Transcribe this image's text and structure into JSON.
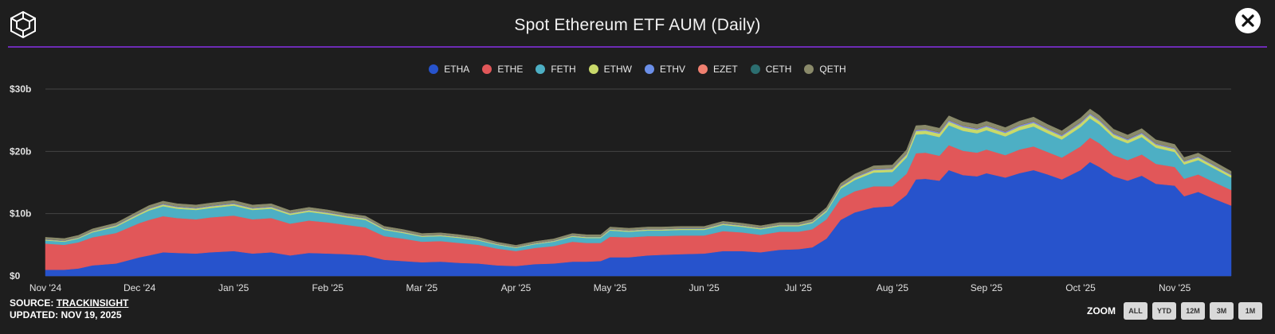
{
  "header": {
    "title": "Spot Ethereum ETF AUM (Daily)"
  },
  "colors": {
    "background": "#1e1e1e",
    "divider": "#6d2bb5",
    "grid": "#444444",
    "axis_text": "#e0e0e0"
  },
  "footer": {
    "source_label": "SOURCE:",
    "source_link": "TRACKINSIGHT",
    "updated": "UPDATED: NOV 19, 2025"
  },
  "zoom": {
    "label": "ZOOM",
    "buttons": [
      "ALL",
      "YTD",
      "12M",
      "3M",
      "1M"
    ]
  },
  "chart_data": {
    "type": "area",
    "stacked": true,
    "title": "Spot Ethereum ETF AUM (Daily)",
    "xlabel": "",
    "ylabel": "",
    "unit": "billion USD",
    "ylim": [
      0,
      30
    ],
    "yticks": [
      0,
      10,
      20,
      30
    ],
    "ytick_labels": [
      "$0",
      "$10b",
      "$20b",
      "$30b"
    ],
    "xrange": [
      "2024-11-01",
      "2025-11-19"
    ],
    "xticks": [
      "Nov '24",
      "Dec '24",
      "Jan '25",
      "Feb '25",
      "Mar '25",
      "Apr '25",
      "May '25",
      "Jun '25",
      "Jul '25",
      "Aug '25",
      "Sep '25",
      "Oct '25",
      "Nov '25"
    ],
    "xtick_months": [
      0,
      1,
      2,
      3,
      4,
      5,
      6,
      7,
      8,
      9,
      10,
      11,
      12
    ],
    "legend_position": "top-center",
    "x": [
      0,
      0.2,
      0.35,
      0.5,
      0.75,
      1.0,
      1.1,
      1.25,
      1.4,
      1.6,
      1.75,
      2.0,
      2.2,
      2.4,
      2.6,
      2.8,
      3.0,
      3.2,
      3.4,
      3.6,
      3.8,
      4.0,
      4.2,
      4.4,
      4.6,
      4.8,
      5.0,
      5.2,
      5.4,
      5.6,
      5.75,
      5.9,
      6.0,
      6.2,
      6.4,
      6.55,
      6.75,
      7.0,
      7.2,
      7.4,
      7.6,
      7.8,
      8.0,
      8.15,
      8.3,
      8.45,
      8.6,
      8.8,
      9.0,
      9.15,
      9.25,
      9.35,
      9.5,
      9.6,
      9.75,
      9.9,
      10.0,
      10.2,
      10.35,
      10.5,
      10.65,
      10.8,
      11.0,
      11.1,
      11.2,
      11.35,
      11.5,
      11.65,
      11.8,
      12.0,
      12.1,
      12.25,
      12.4,
      12.6
    ],
    "series": [
      {
        "name": "ETHA",
        "color": "#2753cc",
        "values": [
          1.0,
          1.0,
          1.2,
          1.7,
          2.0,
          3.0,
          3.3,
          3.8,
          3.7,
          3.6,
          3.8,
          4.0,
          3.6,
          3.8,
          3.3,
          3.7,
          3.6,
          3.5,
          3.3,
          2.6,
          2.4,
          2.2,
          2.3,
          2.1,
          2.0,
          1.7,
          1.6,
          1.9,
          2.0,
          2.3,
          2.3,
          2.4,
          3.0,
          3.0,
          3.3,
          3.4,
          3.5,
          3.6,
          4.0,
          4.0,
          3.8,
          4.2,
          4.3,
          4.6,
          6.0,
          9.0,
          10.2,
          11.0,
          11.2,
          13.0,
          15.5,
          15.6,
          15.3,
          17.0,
          16.2,
          16.0,
          16.5,
          15.8,
          16.5,
          17.0,
          16.3,
          15.5,
          17.0,
          18.3,
          17.5,
          16.0,
          15.3,
          16.1,
          14.8,
          14.5,
          12.8,
          13.5,
          12.5,
          11.3
        ]
      },
      {
        "name": "ETHE",
        "color": "#e15759",
        "values": [
          4.2,
          4.0,
          4.2,
          4.5,
          4.9,
          5.5,
          5.7,
          5.8,
          5.6,
          5.5,
          5.6,
          5.7,
          5.5,
          5.5,
          5.1,
          5.2,
          5.0,
          4.7,
          4.5,
          3.8,
          3.6,
          3.3,
          3.3,
          3.2,
          3.0,
          2.7,
          2.4,
          2.6,
          2.8,
          3.2,
          3.0,
          2.9,
          3.3,
          3.2,
          3.1,
          3.0,
          3.0,
          2.9,
          3.2,
          3.0,
          2.8,
          2.9,
          2.8,
          2.9,
          3.1,
          3.4,
          3.4,
          3.4,
          3.2,
          3.4,
          4.2,
          4.2,
          4.0,
          4.0,
          3.9,
          3.8,
          3.8,
          3.6,
          3.8,
          3.8,
          3.6,
          3.5,
          3.8,
          3.9,
          3.8,
          3.4,
          3.3,
          3.4,
          3.2,
          3.0,
          2.8,
          2.8,
          2.7,
          2.5
        ]
      },
      {
        "name": "FETH",
        "color": "#4dafc4",
        "values": [
          0.5,
          0.5,
          0.6,
          0.8,
          1.0,
          1.3,
          1.5,
          1.6,
          1.5,
          1.5,
          1.5,
          1.6,
          1.5,
          1.5,
          1.4,
          1.4,
          1.3,
          1.2,
          1.2,
          1.0,
          0.9,
          0.8,
          0.8,
          0.8,
          0.7,
          0.6,
          0.5,
          0.6,
          0.7,
          0.8,
          0.8,
          0.8,
          1.0,
          0.9,
          0.9,
          0.9,
          0.9,
          0.9,
          1.0,
          0.9,
          0.9,
          0.9,
          0.9,
          1.0,
          1.2,
          1.6,
          1.8,
          2.2,
          2.3,
          2.6,
          3.0,
          3.0,
          3.0,
          3.2,
          3.2,
          3.1,
          3.1,
          3.0,
          3.1,
          3.2,
          3.0,
          2.9,
          3.1,
          3.1,
          3.0,
          2.8,
          2.7,
          2.8,
          2.6,
          2.4,
          2.3,
          2.3,
          2.2,
          2.0
        ]
      },
      {
        "name": "ETHW",
        "color": "#c9d96a",
        "values": [
          0.12,
          0.12,
          0.13,
          0.16,
          0.18,
          0.22,
          0.25,
          0.26,
          0.25,
          0.24,
          0.25,
          0.26,
          0.24,
          0.24,
          0.23,
          0.23,
          0.22,
          0.21,
          0.2,
          0.17,
          0.16,
          0.14,
          0.14,
          0.14,
          0.13,
          0.11,
          0.1,
          0.11,
          0.12,
          0.14,
          0.14,
          0.14,
          0.16,
          0.16,
          0.16,
          0.16,
          0.16,
          0.16,
          0.17,
          0.17,
          0.16,
          0.17,
          0.17,
          0.18,
          0.22,
          0.3,
          0.33,
          0.38,
          0.4,
          0.45,
          0.55,
          0.55,
          0.55,
          0.58,
          0.57,
          0.56,
          0.56,
          0.55,
          0.57,
          0.58,
          0.55,
          0.53,
          0.56,
          0.57,
          0.55,
          0.51,
          0.49,
          0.51,
          0.48,
          0.45,
          0.42,
          0.43,
          0.41,
          0.38
        ]
      },
      {
        "name": "ETHV",
        "color": "#6b8fe8",
        "values": [
          0.05,
          0.05,
          0.05,
          0.06,
          0.07,
          0.08,
          0.09,
          0.09,
          0.09,
          0.09,
          0.09,
          0.09,
          0.09,
          0.09,
          0.08,
          0.08,
          0.08,
          0.07,
          0.07,
          0.06,
          0.06,
          0.05,
          0.05,
          0.05,
          0.05,
          0.04,
          0.04,
          0.04,
          0.05,
          0.05,
          0.05,
          0.05,
          0.06,
          0.06,
          0.06,
          0.06,
          0.06,
          0.06,
          0.06,
          0.06,
          0.06,
          0.06,
          0.06,
          0.07,
          0.08,
          0.1,
          0.11,
          0.12,
          0.13,
          0.14,
          0.17,
          0.17,
          0.17,
          0.18,
          0.18,
          0.17,
          0.17,
          0.17,
          0.18,
          0.18,
          0.17,
          0.16,
          0.17,
          0.18,
          0.17,
          0.16,
          0.15,
          0.16,
          0.15,
          0.14,
          0.13,
          0.13,
          0.12,
          0.11
        ]
      },
      {
        "name": "EZET",
        "color": "#f08070",
        "values": [
          0.02,
          0.02,
          0.02,
          0.02,
          0.03,
          0.03,
          0.03,
          0.03,
          0.03,
          0.03,
          0.03,
          0.03,
          0.03,
          0.03,
          0.03,
          0.03,
          0.03,
          0.03,
          0.03,
          0.02,
          0.02,
          0.02,
          0.02,
          0.02,
          0.02,
          0.02,
          0.02,
          0.02,
          0.02,
          0.02,
          0.02,
          0.02,
          0.02,
          0.02,
          0.02,
          0.02,
          0.02,
          0.02,
          0.02,
          0.02,
          0.02,
          0.02,
          0.02,
          0.02,
          0.03,
          0.04,
          0.04,
          0.05,
          0.05,
          0.05,
          0.06,
          0.06,
          0.06,
          0.06,
          0.06,
          0.06,
          0.06,
          0.06,
          0.06,
          0.06,
          0.06,
          0.06,
          0.06,
          0.06,
          0.06,
          0.05,
          0.05,
          0.05,
          0.05,
          0.05,
          0.04,
          0.04,
          0.04,
          0.04
        ]
      },
      {
        "name": "CETH",
        "color": "#2c6e70",
        "values": [
          0.02,
          0.02,
          0.02,
          0.02,
          0.02,
          0.03,
          0.03,
          0.03,
          0.03,
          0.03,
          0.03,
          0.03,
          0.03,
          0.03,
          0.02,
          0.02,
          0.02,
          0.02,
          0.02,
          0.02,
          0.02,
          0.01,
          0.01,
          0.01,
          0.01,
          0.01,
          0.01,
          0.01,
          0.01,
          0.01,
          0.01,
          0.01,
          0.02,
          0.02,
          0.02,
          0.02,
          0.02,
          0.02,
          0.02,
          0.02,
          0.02,
          0.02,
          0.02,
          0.02,
          0.02,
          0.03,
          0.03,
          0.03,
          0.03,
          0.04,
          0.04,
          0.04,
          0.04,
          0.04,
          0.04,
          0.04,
          0.04,
          0.04,
          0.04,
          0.04,
          0.04,
          0.04,
          0.04,
          0.04,
          0.04,
          0.04,
          0.04,
          0.04,
          0.03,
          0.03,
          0.03,
          0.03,
          0.03,
          0.03
        ]
      },
      {
        "name": "QETH",
        "color": "#8a8a6a",
        "values": [
          0.3,
          0.3,
          0.3,
          0.3,
          0.3,
          0.35,
          0.4,
          0.4,
          0.4,
          0.4,
          0.4,
          0.4,
          0.4,
          0.4,
          0.35,
          0.35,
          0.35,
          0.3,
          0.3,
          0.3,
          0.3,
          0.3,
          0.3,
          0.3,
          0.3,
          0.25,
          0.25,
          0.25,
          0.25,
          0.3,
          0.3,
          0.3,
          0.3,
          0.3,
          0.3,
          0.3,
          0.3,
          0.3,
          0.3,
          0.3,
          0.3,
          0.3,
          0.3,
          0.3,
          0.35,
          0.4,
          0.45,
          0.5,
          0.5,
          0.55,
          0.6,
          0.6,
          0.6,
          0.65,
          0.6,
          0.6,
          0.6,
          0.6,
          0.6,
          0.65,
          0.6,
          0.6,
          0.65,
          0.65,
          0.65,
          0.6,
          0.6,
          0.6,
          0.55,
          0.55,
          0.5,
          0.5,
          0.5,
          0.45
        ]
      }
    ]
  }
}
